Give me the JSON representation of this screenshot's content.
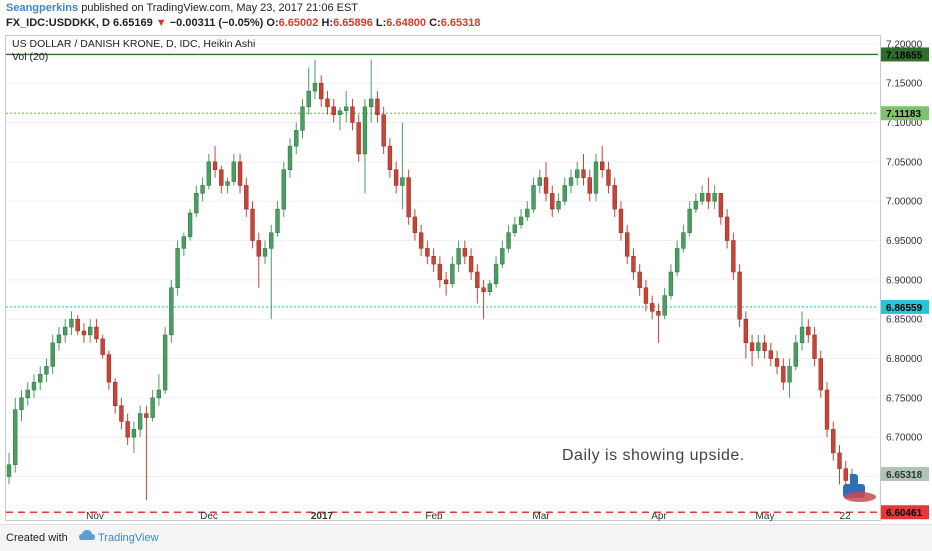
{
  "header": {
    "author": "Seangperkins",
    "published": "published on TradingView.com, May 23, 2017 21:06 EST",
    "symbol": "FX_IDC:USDDKK, D",
    "last": "6.65169",
    "change": "−0.00311 (−0.05%)",
    "open_label": "O:",
    "open": "6.65002",
    "high_label": "H:",
    "high": "6.65896",
    "low_label": "L:",
    "low": "6.64800",
    "close_label": "C:",
    "close": "6.65318"
  },
  "footer": {
    "created": "Created with",
    "brand": "TradingView"
  },
  "colors": {
    "up": "#4a9e62",
    "down": "#c74436",
    "resistance": "#2f6e2a",
    "resistance2": "#7cc36a",
    "support_cyan": "#29c5d6",
    "support_red": "#e53935",
    "axis_text": "#333333"
  },
  "chart_data": {
    "type": "candlestick",
    "title": "US DOLLAR / DANISH KRONE, D, IDC, Heikin Ashi",
    "subtitle": "Vol (20)",
    "ylim": [
      6.61,
      7.21
    ],
    "y_ticks": [
      "7.20000",
      "7.15000",
      "7.10000",
      "7.05000",
      "7.00000",
      "6.95000",
      "6.90000",
      "6.85000",
      "6.80000",
      "6.75000",
      "6.70000",
      "6.65000"
    ],
    "x_ticks": [
      "Nov",
      "Dec",
      "2017",
      "Feb",
      "Mar",
      "Apr",
      "May",
      "22"
    ],
    "annotation": "Daily is showing upside.",
    "price_lines": [
      {
        "value": 7.18655,
        "label": "7.18655",
        "style": "solid",
        "color": "#2f6e2a"
      },
      {
        "value": 7.11183,
        "label": "7.11183",
        "style": "dotted",
        "color": "#7cc36a"
      },
      {
        "value": 6.86559,
        "label": "6.86559",
        "style": "dotted",
        "color": "#29c5d6"
      },
      {
        "value": 6.60461,
        "label": "6.60461",
        "style": "dashed",
        "color": "#e53935"
      },
      {
        "value": 6.65318,
        "label": "6.65318",
        "style": "marker",
        "color": "#b0c4b4"
      }
    ],
    "series": [
      {
        "values": [
          [
            6.65,
            6.68,
            6.64,
            6.665
          ],
          [
            6.665,
            6.75,
            6.655,
            6.735
          ],
          [
            6.735,
            6.76,
            6.72,
            6.75
          ],
          [
            6.75,
            6.77,
            6.74,
            6.76
          ],
          [
            6.76,
            6.78,
            6.75,
            6.77
          ],
          [
            6.77,
            6.79,
            6.76,
            6.78
          ],
          [
            6.78,
            6.8,
            6.77,
            6.79
          ],
          [
            6.79,
            6.83,
            6.78,
            6.82
          ],
          [
            6.82,
            6.84,
            6.81,
            6.83
          ],
          [
            6.83,
            6.85,
            6.82,
            6.84
          ],
          [
            6.84,
            6.86,
            6.83,
            6.85
          ],
          [
            6.85,
            6.855,
            6.83,
            6.835
          ],
          [
            6.835,
            6.845,
            6.82,
            6.83
          ],
          [
            6.83,
            6.85,
            6.82,
            6.84
          ],
          [
            6.84,
            6.85,
            6.82,
            6.825
          ],
          [
            6.825,
            6.83,
            6.8,
            6.805
          ],
          [
            6.805,
            6.81,
            6.76,
            6.77
          ],
          [
            6.77,
            6.775,
            6.73,
            6.74
          ],
          [
            6.74,
            6.75,
            6.71,
            6.72
          ],
          [
            6.72,
            6.73,
            6.69,
            6.7
          ],
          [
            6.7,
            6.72,
            6.68,
            6.71
          ],
          [
            6.71,
            6.74,
            6.7,
            6.73
          ],
          [
            6.73,
            6.74,
            6.62,
            6.725
          ],
          [
            6.725,
            6.76,
            6.72,
            6.75
          ],
          [
            6.75,
            6.78,
            6.74,
            6.76
          ],
          [
            6.76,
            6.84,
            6.755,
            6.83
          ],
          [
            6.83,
            6.9,
            6.82,
            6.89
          ],
          [
            6.89,
            6.95,
            6.88,
            6.94
          ],
          [
            6.94,
            6.96,
            6.93,
            6.955
          ],
          [
            6.955,
            6.99,
            6.95,
            6.985
          ],
          [
            6.985,
            7.02,
            6.98,
            7.01
          ],
          [
            7.01,
            7.03,
            7.0,
            7.02
          ],
          [
            7.02,
            7.06,
            7.015,
            7.05
          ],
          [
            7.05,
            7.07,
            7.03,
            7.04
          ],
          [
            7.04,
            7.045,
            7.01,
            7.02
          ],
          [
            7.02,
            7.03,
            7.01,
            7.025
          ],
          [
            7.025,
            7.06,
            7.02,
            7.05
          ],
          [
            7.05,
            7.06,
            7.01,
            7.02
          ],
          [
            7.02,
            7.03,
            6.98,
            6.99
          ],
          [
            6.99,
            7.0,
            6.94,
            6.95
          ],
          [
            6.95,
            6.96,
            6.89,
            6.93
          ],
          [
            6.93,
            6.95,
            6.92,
            6.94
          ],
          [
            6.94,
            6.97,
            6.85,
            6.96
          ],
          [
            6.96,
            7.0,
            6.955,
            6.99
          ],
          [
            6.99,
            7.05,
            6.98,
            7.04
          ],
          [
            7.04,
            7.08,
            7.03,
            7.07
          ],
          [
            7.07,
            7.1,
            7.06,
            7.09
          ],
          [
            7.09,
            7.13,
            7.08,
            7.12
          ],
          [
            7.12,
            7.17,
            7.11,
            7.14
          ],
          [
            7.14,
            7.18,
            7.13,
            7.15
          ],
          [
            7.15,
            7.16,
            7.12,
            7.13
          ],
          [
            7.13,
            7.14,
            7.11,
            7.12
          ],
          [
            7.12,
            7.13,
            7.1,
            7.11
          ],
          [
            7.11,
            7.12,
            7.09,
            7.115
          ],
          [
            7.115,
            7.14,
            7.1,
            7.12
          ],
          [
            7.12,
            7.13,
            7.09,
            7.1
          ],
          [
            7.1,
            7.11,
            7.05,
            7.06
          ],
          [
            7.06,
            7.13,
            7.01,
            7.12
          ],
          [
            7.12,
            7.18,
            7.1,
            7.13
          ],
          [
            7.13,
            7.14,
            7.1,
            7.11
          ],
          [
            7.11,
            7.12,
            7.06,
            7.07
          ],
          [
            7.07,
            7.08,
            7.03,
            7.04
          ],
          [
            7.04,
            7.05,
            7.01,
            7.02
          ],
          [
            7.02,
            7.1,
            6.99,
            7.03
          ],
          [
            7.03,
            7.04,
            6.97,
            6.98
          ],
          [
            6.98,
            6.99,
            6.95,
            6.96
          ],
          [
            6.96,
            6.97,
            6.93,
            6.94
          ],
          [
            6.94,
            6.95,
            6.92,
            6.93
          ],
          [
            6.93,
            6.94,
            6.91,
            6.92
          ],
          [
            6.92,
            6.93,
            6.89,
            6.9
          ],
          [
            6.9,
            6.91,
            6.88,
            6.895
          ],
          [
            6.895,
            6.93,
            6.89,
            6.92
          ],
          [
            6.92,
            6.95,
            6.91,
            6.94
          ],
          [
            6.94,
            6.95,
            6.92,
            6.93
          ],
          [
            6.93,
            6.94,
            6.9,
            6.91
          ],
          [
            6.91,
            6.92,
            6.87,
            6.89
          ],
          [
            6.89,
            6.9,
            6.85,
            6.885
          ],
          [
            6.885,
            6.9,
            6.88,
            6.895
          ],
          [
            6.895,
            6.93,
            6.89,
            6.92
          ],
          [
            6.92,
            6.95,
            6.915,
            6.94
          ],
          [
            6.94,
            6.97,
            6.935,
            6.96
          ],
          [
            6.96,
            6.98,
            6.955,
            6.97
          ],
          [
            6.97,
            6.99,
            6.965,
            6.98
          ],
          [
            6.98,
            7.0,
            6.975,
            6.99
          ],
          [
            6.99,
            7.03,
            6.985,
            7.02
          ],
          [
            7.02,
            7.04,
            7.01,
            7.03
          ],
          [
            7.03,
            7.05,
            7.0,
            7.01
          ],
          [
            7.01,
            7.02,
            6.98,
            6.99
          ],
          [
            6.99,
            7.01,
            6.985,
            7.0
          ],
          [
            7.0,
            7.03,
            6.995,
            7.02
          ],
          [
            7.02,
            7.04,
            7.01,
            7.03
          ],
          [
            7.03,
            7.05,
            7.02,
            7.04
          ],
          [
            7.04,
            7.06,
            7.02,
            7.03
          ],
          [
            7.03,
            7.04,
            7.0,
            7.01
          ],
          [
            7.01,
            7.06,
            7.0,
            7.05
          ],
          [
            7.05,
            7.07,
            7.03,
            7.04
          ],
          [
            7.04,
            7.05,
            7.01,
            7.02
          ],
          [
            7.02,
            7.03,
            6.98,
            6.99
          ],
          [
            6.99,
            7.0,
            6.95,
            6.96
          ],
          [
            6.96,
            6.97,
            6.92,
            6.93
          ],
          [
            6.93,
            6.94,
            6.9,
            6.91
          ],
          [
            6.91,
            6.92,
            6.88,
            6.89
          ],
          [
            6.89,
            6.9,
            6.86,
            6.87
          ],
          [
            6.87,
            6.88,
            6.85,
            6.86
          ],
          [
            6.86,
            6.87,
            6.82,
            6.855
          ],
          [
            6.855,
            6.89,
            6.85,
            6.88
          ],
          [
            6.88,
            6.92,
            6.875,
            6.91
          ],
          [
            6.91,
            6.95,
            6.905,
            6.94
          ],
          [
            6.94,
            6.97,
            6.935,
            6.96
          ],
          [
            6.96,
            7.0,
            6.955,
            6.99
          ],
          [
            6.99,
            7.01,
            6.985,
            7.0
          ],
          [
            7.0,
            7.02,
            6.995,
            7.01
          ],
          [
            7.01,
            7.03,
            6.99,
            7.0
          ],
          [
            7.0,
            7.02,
            6.99,
            7.01
          ],
          [
            7.01,
            7.01,
            6.97,
            6.98
          ],
          [
            6.98,
            6.99,
            6.94,
            6.95
          ],
          [
            6.95,
            6.96,
            6.9,
            6.91
          ],
          [
            6.91,
            6.92,
            6.84,
            6.85
          ],
          [
            6.85,
            6.86,
            6.8,
            6.82
          ],
          [
            6.82,
            6.83,
            6.79,
            6.81
          ],
          [
            6.81,
            6.83,
            6.8,
            6.82
          ],
          [
            6.82,
            6.83,
            6.8,
            6.81
          ],
          [
            6.81,
            6.82,
            6.79,
            6.8
          ],
          [
            6.8,
            6.81,
            6.78,
            6.79
          ],
          [
            6.79,
            6.8,
            6.76,
            6.77
          ],
          [
            6.77,
            6.8,
            6.75,
            6.79
          ],
          [
            6.79,
            6.83,
            6.785,
            6.82
          ],
          [
            6.82,
            6.86,
            6.81,
            6.84
          ],
          [
            6.84,
            6.85,
            6.82,
            6.83
          ],
          [
            6.83,
            6.84,
            6.79,
            6.8
          ],
          [
            6.8,
            6.81,
            6.75,
            6.76
          ],
          [
            6.76,
            6.77,
            6.7,
            6.71
          ],
          [
            6.71,
            6.72,
            6.67,
            6.68
          ],
          [
            6.68,
            6.69,
            6.64,
            6.66
          ],
          [
            6.66,
            6.67,
            6.63,
            6.645
          ],
          [
            6.645,
            6.66,
            6.64,
            6.653
          ]
        ]
      }
    ]
  }
}
